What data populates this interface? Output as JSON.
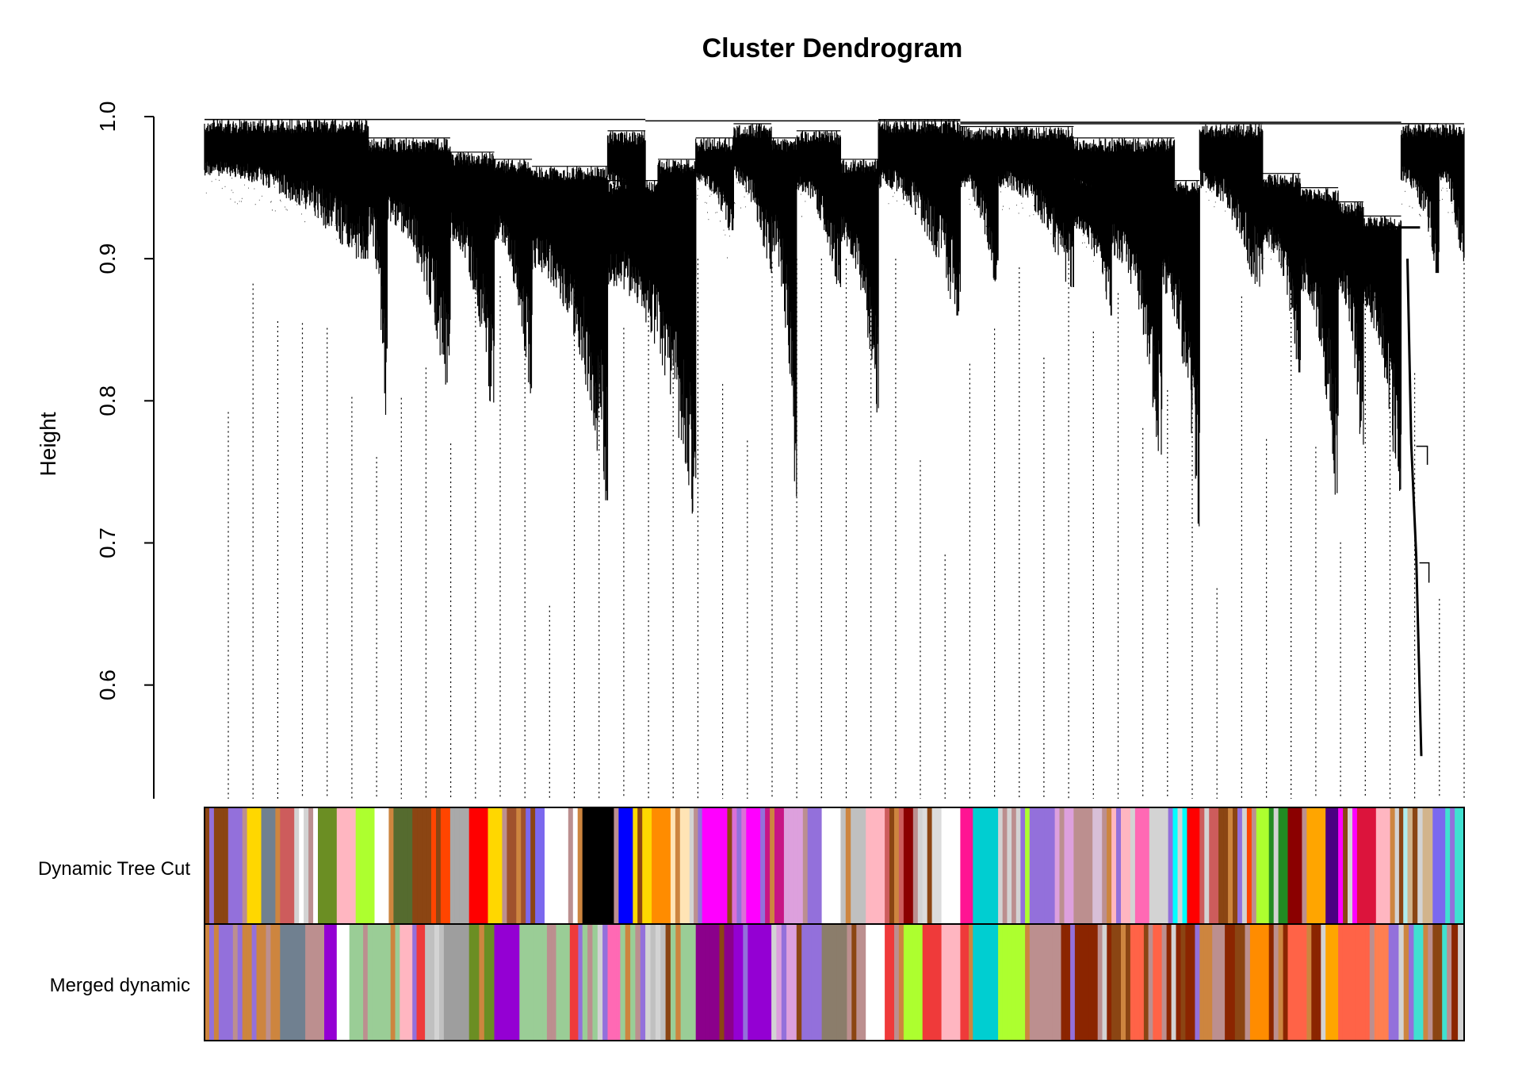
{
  "chart_data": {
    "type": "dendrogram",
    "title": "Cluster Dendrogram",
    "xlabel": "",
    "ylabel": "Height",
    "ylim": [
      0.52,
      1.0
    ],
    "yticks": [
      0.6,
      0.7,
      0.8,
      0.9,
      1.0
    ],
    "ytick_labels": [
      "0.6",
      "0.7",
      "0.8",
      "0.9",
      "1.0"
    ],
    "color_rows": [
      {
        "label": "Dynamic Tree Cut",
        "segments": [
          {
            "end": 0.015,
            "color": "#8b4513"
          },
          {
            "end": 0.03,
            "color": "#9370db"
          },
          {
            "end": 0.045,
            "color": "#ffd700"
          },
          {
            "end": 0.06,
            "color": "#708090"
          },
          {
            "end": 0.075,
            "color": "#cd5c5c"
          },
          {
            "end": 0.09,
            "color": "#ffffff"
          },
          {
            "end": 0.105,
            "color": "#6b8e23"
          },
          {
            "end": 0.12,
            "color": "#ffb6c1"
          },
          {
            "end": 0.135,
            "color": "#adff2f"
          },
          {
            "end": 0.15,
            "color": "#ffffff"
          },
          {
            "end": 0.165,
            "color": "#556b2f"
          },
          {
            "end": 0.18,
            "color": "#8b4513"
          },
          {
            "end": 0.195,
            "color": "#ff4500"
          },
          {
            "end": 0.21,
            "color": "#a9a9a9"
          },
          {
            "end": 0.225,
            "color": "#ff0000"
          },
          {
            "end": 0.24,
            "color": "#ffd700"
          },
          {
            "end": 0.255,
            "color": "#a0522d"
          },
          {
            "end": 0.27,
            "color": "#7b68ee"
          },
          {
            "end": 0.3,
            "color": "#ffffff"
          },
          {
            "end": 0.305,
            "color": "#000000"
          },
          {
            "end": 0.325,
            "color": "#000000"
          },
          {
            "end": 0.34,
            "color": "#0000ff"
          },
          {
            "end": 0.355,
            "color": "#ffd700"
          },
          {
            "end": 0.37,
            "color": "#ff8c00"
          },
          {
            "end": 0.385,
            "color": "#ffe4b5"
          },
          {
            "end": 0.395,
            "color": "#0000ff"
          },
          {
            "end": 0.415,
            "color": "#ff00ff"
          },
          {
            "end": 0.43,
            "color": "#da70d6"
          },
          {
            "end": 0.445,
            "color": "#ff00ff"
          },
          {
            "end": 0.46,
            "color": "#c71585"
          },
          {
            "end": 0.475,
            "color": "#dda0dd"
          },
          {
            "end": 0.49,
            "color": "#9370db"
          },
          {
            "end": 0.505,
            "color": "#ffffff"
          },
          {
            "end": 0.525,
            "color": "#c0c0c0"
          },
          {
            "end": 0.54,
            "color": "#ffb6c1"
          },
          {
            "end": 0.555,
            "color": "#cd5c5c"
          },
          {
            "end": 0.57,
            "color": "#8b0000"
          },
          {
            "end": 0.585,
            "color": "#dcdcdc"
          },
          {
            "end": 0.6,
            "color": "#ffffff"
          },
          {
            "end": 0.61,
            "color": "#ff1493"
          },
          {
            "end": 0.63,
            "color": "#00ced1"
          },
          {
            "end": 0.655,
            "color": "#adff2f"
          },
          {
            "end": 0.675,
            "color": "#9370db"
          },
          {
            "end": 0.69,
            "color": "#dda0dd"
          },
          {
            "end": 0.705,
            "color": "#bc8f8f"
          },
          {
            "end": 0.72,
            "color": "#d8bfd8"
          },
          {
            "end": 0.735,
            "color": "#ffb6c1"
          },
          {
            "end": 0.75,
            "color": "#ff69b4"
          },
          {
            "end": 0.765,
            "color": "#d3d3d3"
          },
          {
            "end": 0.78,
            "color": "#00ffff"
          },
          {
            "end": 0.79,
            "color": "#ff0000"
          },
          {
            "end": 0.805,
            "color": "#cd5c5c"
          },
          {
            "end": 0.82,
            "color": "#8b4513"
          },
          {
            "end": 0.835,
            "color": "#ff4500"
          },
          {
            "end": 0.845,
            "color": "#adff2f"
          },
          {
            "end": 0.86,
            "color": "#228b22"
          },
          {
            "end": 0.875,
            "color": "#8b0000"
          },
          {
            "end": 0.89,
            "color": "#ffa500"
          },
          {
            "end": 0.9,
            "color": "#4b0082"
          },
          {
            "end": 0.915,
            "color": "#ff00ff"
          },
          {
            "end": 0.93,
            "color": "#dc143c"
          },
          {
            "end": 0.945,
            "color": "#ffb6c1"
          },
          {
            "end": 0.955,
            "color": "#afeeee"
          },
          {
            "end": 0.975,
            "color": "#d2b48c"
          },
          {
            "end": 0.985,
            "color": "#7b68ee"
          },
          {
            "end": 1.0,
            "color": "#40e0d0"
          }
        ]
      },
      {
        "label": "Merged dynamic",
        "segments": [
          {
            "end": 0.03,
            "color": "#9370db"
          },
          {
            "end": 0.06,
            "color": "#cd853f"
          },
          {
            "end": 0.08,
            "color": "#708090"
          },
          {
            "end": 0.095,
            "color": "#bc8f8f"
          },
          {
            "end": 0.105,
            "color": "#9400d3"
          },
          {
            "end": 0.115,
            "color": "#ffffff"
          },
          {
            "end": 0.155,
            "color": "#9acd96"
          },
          {
            "end": 0.165,
            "color": "#ffb6c1"
          },
          {
            "end": 0.175,
            "color": "#ef3a3a"
          },
          {
            "end": 0.19,
            "color": "#c0c0c0"
          },
          {
            "end": 0.21,
            "color": "#9e9e9e"
          },
          {
            "end": 0.23,
            "color": "#6b8e23"
          },
          {
            "end": 0.25,
            "color": "#9400d3"
          },
          {
            "end": 0.29,
            "color": "#9acd96"
          },
          {
            "end": 0.3,
            "color": "#ef3a3a"
          },
          {
            "end": 0.32,
            "color": "#9acd96"
          },
          {
            "end": 0.33,
            "color": "#ff69b4"
          },
          {
            "end": 0.35,
            "color": "#9acd96"
          },
          {
            "end": 0.37,
            "color": "#c0c0c0"
          },
          {
            "end": 0.39,
            "color": "#9acd96"
          },
          {
            "end": 0.42,
            "color": "#8b008b"
          },
          {
            "end": 0.45,
            "color": "#9400d3"
          },
          {
            "end": 0.47,
            "color": "#dda0dd"
          },
          {
            "end": 0.49,
            "color": "#9370db"
          },
          {
            "end": 0.51,
            "color": "#8b7d6b"
          },
          {
            "end": 0.525,
            "color": "#bc8f8f"
          },
          {
            "end": 0.54,
            "color": "#ffffff"
          },
          {
            "end": 0.555,
            "color": "#ef3a3a"
          },
          {
            "end": 0.57,
            "color": "#adff2f"
          },
          {
            "end": 0.585,
            "color": "#ef3a3a"
          },
          {
            "end": 0.6,
            "color": "#ffb6c1"
          },
          {
            "end": 0.61,
            "color": "#ef3a3a"
          },
          {
            "end": 0.63,
            "color": "#00ced1"
          },
          {
            "end": 0.655,
            "color": "#adff2f"
          },
          {
            "end": 0.68,
            "color": "#bc8f8f"
          },
          {
            "end": 0.72,
            "color": "#8b2500"
          },
          {
            "end": 0.735,
            "color": "#8b4513"
          },
          {
            "end": 0.76,
            "color": "#ff6347"
          },
          {
            "end": 0.79,
            "color": "#8b2500"
          },
          {
            "end": 0.8,
            "color": "#cd853f"
          },
          {
            "end": 0.81,
            "color": "#bc8f8f"
          },
          {
            "end": 0.83,
            "color": "#8b2500"
          },
          {
            "end": 0.845,
            "color": "#ff8c00"
          },
          {
            "end": 0.86,
            "color": "#8b2500"
          },
          {
            "end": 0.875,
            "color": "#ff6347"
          },
          {
            "end": 0.89,
            "color": "#8b2500"
          },
          {
            "end": 0.9,
            "color": "#ffa500"
          },
          {
            "end": 0.925,
            "color": "#ff6347"
          },
          {
            "end": 0.94,
            "color": "#ff7f50"
          },
          {
            "end": 0.96,
            "color": "#9370db"
          },
          {
            "end": 0.99,
            "color": "#40e0d0"
          },
          {
            "end": 0.995,
            "color": "#8b2500"
          },
          {
            "end": 1.0,
            "color": "#40e0d0"
          }
        ]
      }
    ],
    "grid": false,
    "legend": "none"
  },
  "colors": {
    "line": "#000000",
    "background": "#ffffff"
  }
}
